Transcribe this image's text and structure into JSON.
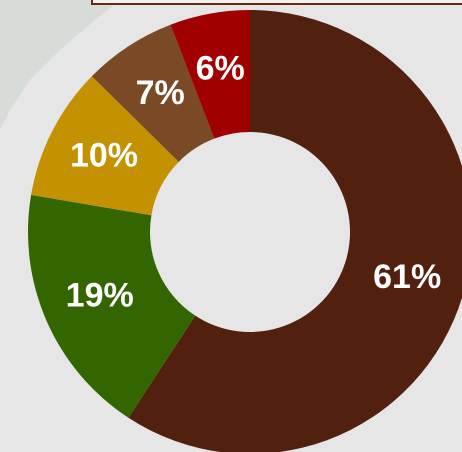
{
  "chart_data": {
    "type": "donut",
    "categories": [
      "61%",
      "19%",
      "10%",
      "7%",
      "6%"
    ],
    "values": [
      61,
      19,
      10,
      7,
      6
    ],
    "value_labels": [
      "61%",
      "19%",
      "10%",
      "7%",
      "6%"
    ],
    "colors": [
      "#52200e",
      "#336600",
      "#c49200",
      "#7a4a27",
      "#a00000"
    ]
  }
}
